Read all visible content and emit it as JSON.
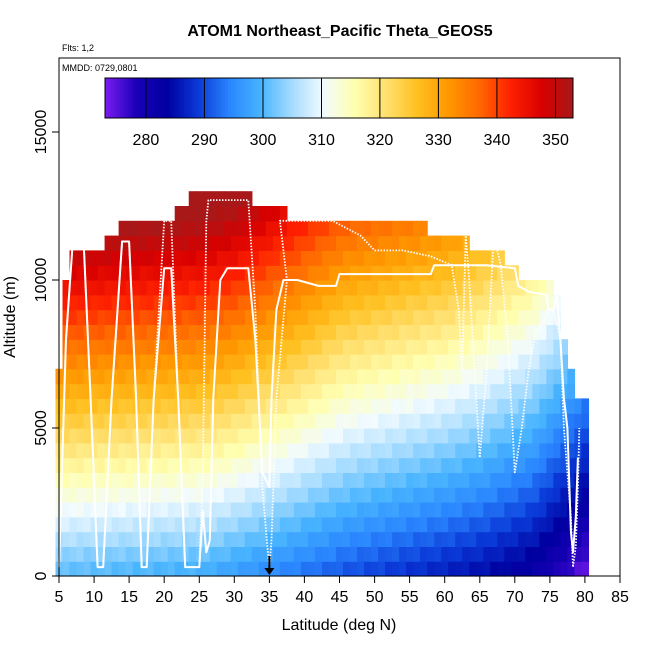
{
  "chart_data": {
    "type": "heatmap",
    "title": "ATOM1 Northeast_Pacific Theta_GEOS5",
    "flights_note": "Flts: 1,2",
    "dates_note": "MMDD: 0729,0801",
    "xlabel": "Latitude (deg N)",
    "ylabel": "Altitude (m)",
    "xlim": [
      5,
      85
    ],
    "ylim": [
      0,
      17500
    ],
    "x_ticks": [
      "5",
      "10",
      "15",
      "20",
      "25",
      "30",
      "35",
      "40",
      "45",
      "50",
      "55",
      "60",
      "65",
      "70",
      "75",
      "80",
      "85"
    ],
    "y_ticks": [
      "0",
      "5000",
      "10000",
      "15000"
    ],
    "colorbar": {
      "min": 273,
      "max": 353,
      "ticks": [
        "280",
        "290",
        "300",
        "310",
        "320",
        "330",
        "340",
        "350"
      ],
      "colors": [
        "#7a1cf0",
        "#1a00b8",
        "#0000a0",
        "#0a3ad8",
        "#2a86ff",
        "#48b4ff",
        "#a6dcff",
        "#f2fbff",
        "#ffffb0",
        "#ffe070",
        "#ffc020",
        "#ff9800",
        "#ff6800",
        "#ff2000",
        "#d80000",
        "#a81818"
      ]
    },
    "grid": false,
    "legend_placement": "top (colorbar inside plot)",
    "arrow_marker": {
      "latitude": 35,
      "altitude": 0
    },
    "theta_field": {
      "lat_start": 4.5,
      "lat_step": 1.0,
      "alt_step": 500,
      "top_altitude_by_lat": [
        [
          4.5,
          7000
        ],
        [
          5.5,
          10000
        ],
        [
          6.5,
          11000
        ],
        [
          10.5,
          11000
        ],
        [
          12.5,
          11500
        ],
        [
          20.5,
          12000
        ],
        [
          25.5,
          13000
        ],
        [
          32.5,
          12500
        ],
        [
          37.5,
          12000
        ],
        [
          44.5,
          12000
        ],
        [
          49.5,
          12000
        ],
        [
          54.5,
          12000
        ],
        [
          57.5,
          11500
        ],
        [
          63.5,
          11000
        ],
        [
          68.5,
          10500
        ],
        [
          70.5,
          10000
        ],
        [
          72.5,
          10000
        ],
        [
          75.5,
          9500
        ],
        [
          76.5,
          8000
        ],
        [
          77.5,
          7000
        ],
        [
          78.5,
          6000
        ],
        [
          79.5,
          6000
        ]
      ],
      "surface_theta_by_lat": [
        [
          5,
          300
        ],
        [
          25,
          298
        ],
        [
          35,
          294
        ],
        [
          45,
          290
        ],
        [
          55,
          287
        ],
        [
          65,
          284
        ],
        [
          72,
          281
        ],
        [
          77,
          276
        ],
        [
          80,
          273
        ]
      ],
      "lapse_theta_per_km_by_lat": [
        [
          5,
          4.6
        ],
        [
          30,
          4.5
        ],
        [
          45,
          4.0
        ],
        [
          60,
          4.0
        ],
        [
          75,
          3.6
        ],
        [
          80,
          3.4
        ]
      ]
    },
    "series": [
      {
        "style": "dotted",
        "points": [
          [
            5,
            300
          ],
          [
            6,
            8000
          ],
          [
            7,
            11400
          ],
          [
            8.5,
            11400
          ],
          [
            9.5,
            6000
          ],
          [
            10.5,
            300
          ],
          [
            11.3,
            300
          ],
          [
            12.5,
            6000
          ],
          [
            14,
            11300
          ],
          [
            15,
            11300
          ],
          [
            16,
            6000
          ],
          [
            16.8,
            300
          ],
          [
            17.5,
            300
          ],
          [
            18.5,
            6000
          ],
          [
            20,
            12000
          ],
          [
            21,
            12000
          ],
          [
            22,
            6000
          ],
          [
            23,
            300
          ],
          [
            25,
            300
          ],
          [
            25.5,
            3500
          ],
          [
            26,
            12000
          ],
          [
            26.3,
            12700
          ],
          [
            32,
            12700
          ],
          [
            33,
            9000
          ],
          [
            34,
            3000
          ],
          [
            34.7,
            1000
          ],
          [
            35,
            300
          ],
          [
            35.3,
            1200
          ],
          [
            36,
            6000
          ],
          [
            37.5,
            10000
          ],
          [
            36.5,
            12000
          ],
          [
            37,
            12000
          ],
          [
            40,
            12000
          ],
          [
            44,
            12000
          ],
          [
            48,
            11500
          ],
          [
            50,
            11000
          ],
          [
            54,
            11000
          ],
          [
            58,
            10800
          ],
          [
            61,
            10500
          ],
          [
            62,
            9000
          ],
          [
            62.5,
            7000
          ],
          [
            63,
            11500
          ],
          [
            63.5,
            10000
          ],
          [
            64,
            8000
          ],
          [
            65,
            4000
          ],
          [
            66,
            7000
          ],
          [
            67,
            11500
          ],
          [
            68,
            10500
          ],
          [
            69,
            8000
          ],
          [
            70,
            3500
          ],
          [
            71,
            5000
          ],
          [
            72,
            7000
          ],
          [
            73,
            8200
          ],
          [
            75,
            9000
          ],
          [
            75.5,
            9000
          ],
          [
            76.5,
            8000
          ],
          [
            77,
            5000
          ],
          [
            78,
            2000
          ],
          [
            78.3,
            300
          ],
          [
            78.7,
            1000
          ],
          [
            79,
            3000
          ],
          [
            79.2,
            5000
          ]
        ]
      },
      {
        "style": "solid",
        "points": [
          [
            5,
            300
          ],
          [
            6,
            8000
          ],
          [
            7,
            11400
          ],
          [
            8.5,
            11400
          ],
          [
            9.5,
            6000
          ],
          [
            10.5,
            300
          ],
          [
            11.3,
            300
          ],
          [
            12.5,
            6000
          ],
          [
            14,
            11300
          ],
          [
            15,
            11300
          ],
          [
            16,
            6000
          ],
          [
            16.8,
            300
          ],
          [
            17.5,
            300
          ],
          [
            18.5,
            6000
          ],
          [
            20,
            10400
          ],
          [
            21,
            10400
          ],
          [
            22,
            6000
          ],
          [
            23,
            300
          ],
          [
            25,
            300
          ],
          [
            25.5,
            2200
          ],
          [
            26,
            800
          ],
          [
            26.5,
            1200
          ],
          [
            27,
            6000
          ],
          [
            28,
            10000
          ],
          [
            29,
            10400
          ],
          [
            32,
            10400
          ],
          [
            33,
            8000
          ],
          [
            34,
            3500
          ],
          [
            35,
            3000
          ],
          [
            35.3,
            6000
          ],
          [
            36,
            9000
          ],
          [
            36.5,
            9500
          ],
          [
            37,
            10000
          ],
          [
            39,
            10000
          ],
          [
            42,
            9800
          ],
          [
            44.5,
            9800
          ],
          [
            45,
            10200
          ],
          [
            50,
            10200
          ],
          [
            55,
            10200
          ],
          [
            58,
            10200
          ],
          [
            58.5,
            10500
          ],
          [
            62,
            10500
          ],
          [
            66,
            10500
          ],
          [
            70,
            10400
          ],
          [
            70.5,
            9800
          ],
          [
            72,
            9600
          ],
          [
            74.5,
            9500
          ],
          [
            74.8,
            9000
          ],
          [
            75.5,
            9000
          ],
          [
            76,
            9500
          ],
          [
            76.5,
            8000
          ],
          [
            77,
            6000
          ],
          [
            77.5,
            5000
          ],
          [
            78,
            1500
          ],
          [
            78.3,
            800
          ],
          [
            78.7,
            2000
          ],
          [
            79,
            4000
          ]
        ]
      }
    ]
  }
}
